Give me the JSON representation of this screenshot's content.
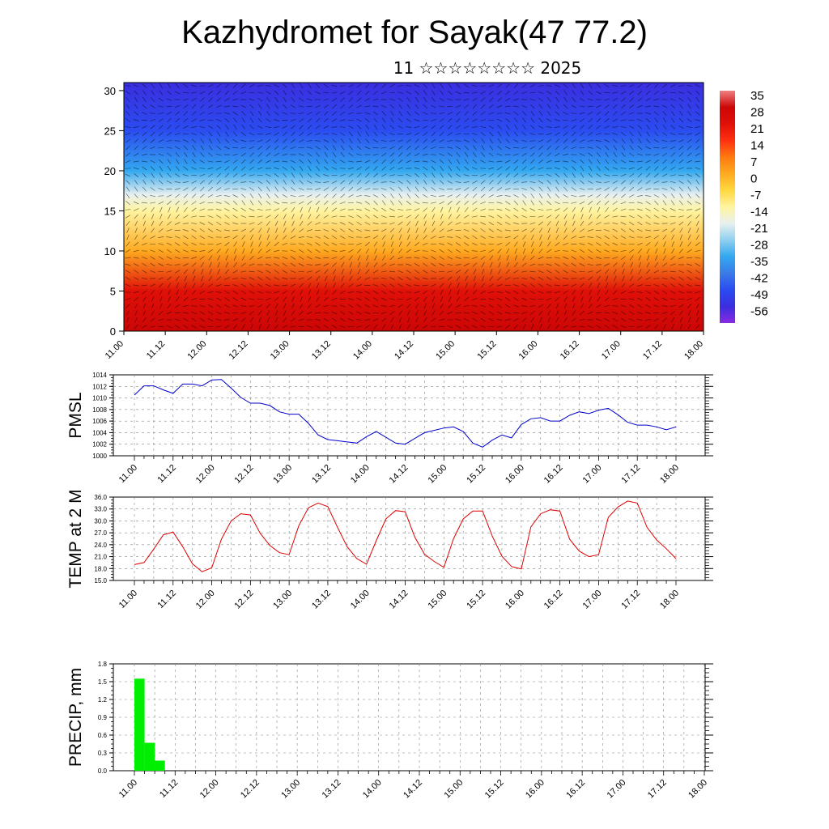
{
  "title": "Kazhydromet for Sayak(47 77.2)",
  "subtitle": "11 ☆☆☆☆☆☆☆☆ 2025",
  "time_labels": [
    "11.00",
    "11.12",
    "12.00",
    "12.12",
    "13.00",
    "13.12",
    "14.00",
    "14.12",
    "15.00",
    "15.12",
    "16.00",
    "16.12",
    "17.00",
    "17.12",
    "18.00"
  ],
  "chart_data": [
    {
      "type": "heatmap",
      "name": "temperature_wind_cross_section",
      "x_range": [
        "11.00",
        "18.00"
      ],
      "yticks": [
        0,
        5,
        10,
        15,
        20,
        25,
        30
      ],
      "ylim": [
        0,
        31
      ],
      "colorbar": {
        "labels": [
          "35",
          "28",
          "21",
          "14",
          "7",
          "0",
          "-7",
          "-14",
          "-21",
          "-28",
          "-35",
          "-42",
          "-49",
          "-56"
        ],
        "range": [
          -63,
          38
        ],
        "colors": [
          "#8a2be2",
          "#3a2ee0",
          "#2b4cf0",
          "#3a7be8",
          "#33a8f0",
          "#8fd0f0",
          "#e8f0f0",
          "#fff4a0",
          "#ffd840",
          "#ffaa20",
          "#ff7a10",
          "#ff3010",
          "#e01008",
          "#cc0606",
          "#f08080"
        ]
      },
      "vertical_profile": [
        {
          "y": 0,
          "value": 32
        },
        {
          "y": 5,
          "value": 22
        },
        {
          "y": 10,
          "value": 5
        },
        {
          "y": 15,
          "value": -10
        },
        {
          "y": 17,
          "value": -20
        },
        {
          "y": 20,
          "value": -35
        },
        {
          "y": 25,
          "value": -52
        },
        {
          "y": 31,
          "value": -58
        }
      ]
    },
    {
      "type": "line",
      "name": "pmsl",
      "ylabel": "PMSL",
      "ylim": [
        1000,
        1014
      ],
      "yticks": [
        "1000",
        "1002",
        "1004",
        "1006",
        "1008",
        "1010",
        "1012",
        "1014"
      ],
      "color": "#0000cc",
      "x_step_hours": 3,
      "values": [
        1010.5,
        1012.1,
        1012.1,
        1011.4,
        1010.8,
        1012.4,
        1012.4,
        1012.1,
        1013.1,
        1013.2,
        1011.7,
        1010.1,
        1009.1,
        1009.1,
        1008.7,
        1007.6,
        1007.2,
        1007.2,
        1005.6,
        1003.6,
        1002.8,
        1002.6,
        1002.4,
        1002.2,
        1003.3,
        1004.2,
        1003.2,
        1002.2,
        1002.0,
        1003.0,
        1004.0,
        1004.4,
        1004.8,
        1005.0,
        1004.2,
        1002.2,
        1001.5,
        1002.7,
        1003.6,
        1003.1,
        1005.4,
        1006.4,
        1006.6,
        1006.0,
        1006.0,
        1007.0,
        1007.6,
        1007.3,
        1007.9,
        1008.2,
        1007.1,
        1005.8,
        1005.3,
        1005.3,
        1005.0,
        1004.5,
        1005.0
      ]
    },
    {
      "type": "line",
      "name": "temp_2m",
      "ylabel": "TEMP at 2 M",
      "ylim": [
        15,
        36
      ],
      "yticks": [
        "15.0",
        "18.0",
        "21.0",
        "24.0",
        "27.0",
        "30.0",
        "33.0",
        "36.0"
      ],
      "color": "#dd0000",
      "x_step_hours": 3,
      "values": [
        19.0,
        19.5,
        22.9,
        26.5,
        27.2,
        23.5,
        19.2,
        17.2,
        18.2,
        25.4,
        30.0,
        31.8,
        31.5,
        26.9,
        23.8,
        22.0,
        21.5,
        28.8,
        33.3,
        34.5,
        33.6,
        28.4,
        23.5,
        20.5,
        19.1,
        25.0,
        30.5,
        32.6,
        32.3,
        25.9,
        21.6,
        19.8,
        18.3,
        25.5,
        30.5,
        32.5,
        32.5,
        26.2,
        21.1,
        18.5,
        17.9,
        28.5,
        31.8,
        32.8,
        32.5,
        25.4,
        22.4,
        21.0,
        21.5,
        30.9,
        33.5,
        35.0,
        34.5,
        28.4,
        25.2,
        23.0,
        20.5
      ]
    },
    {
      "type": "bar",
      "name": "precip",
      "ylabel": "PRECIP, mm",
      "ylim": [
        0,
        1.8
      ],
      "yticks": [
        "0.0",
        "0.3",
        "0.6",
        "0.9",
        "1.2",
        "1.5",
        "1.8"
      ],
      "color": "#00ee00",
      "x_step_hours": 3,
      "values": [
        1.55,
        0.47,
        0.17
      ]
    }
  ]
}
